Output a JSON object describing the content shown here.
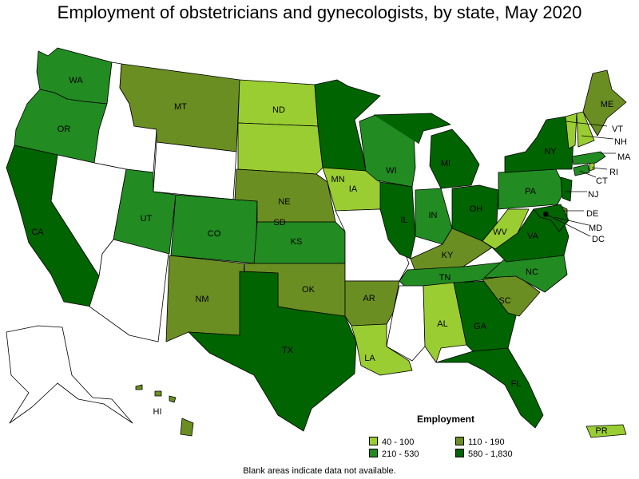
{
  "title": "Employment of obstetricians and gynecologists, by state, May 2020",
  "legend": {
    "title": "Employment",
    "bins": [
      {
        "label": "40 - 100",
        "color": "#9acd32"
      },
      {
        "label": "110 - 190",
        "color": "#6b8e23"
      },
      {
        "label": "210 - 530",
        "color": "#228b22"
      },
      {
        "label": "580 - 1,830",
        "color": "#006400"
      }
    ]
  },
  "note": "Blank areas indicate data not available.",
  "colors": {
    "no_data": "#ffffff",
    "border": "#000000"
  },
  "states": [
    {
      "code": "WA",
      "label": "WA",
      "bin": 2
    },
    {
      "code": "OR",
      "label": "OR",
      "bin": 2
    },
    {
      "code": "CA",
      "label": "CA",
      "bin": 3
    },
    {
      "code": "ID",
      "label": "",
      "bin": null
    },
    {
      "code": "NV",
      "label": "",
      "bin": null
    },
    {
      "code": "AZ",
      "label": "",
      "bin": null
    },
    {
      "code": "UT",
      "label": "UT",
      "bin": 2
    },
    {
      "code": "MT",
      "label": "MT",
      "bin": 1
    },
    {
      "code": "WY",
      "label": "",
      "bin": null
    },
    {
      "code": "CO",
      "label": "CO",
      "bin": 2
    },
    {
      "code": "NM",
      "label": "NM",
      "bin": 1
    },
    {
      "code": "ND",
      "label": "ND",
      "bin": 0
    },
    {
      "code": "SD",
      "label": "SD",
      "bin": 0
    },
    {
      "code": "NE",
      "label": "NE",
      "bin": 1
    },
    {
      "code": "KS",
      "label": "KS",
      "bin": 2
    },
    {
      "code": "OK",
      "label": "OK",
      "bin": 1
    },
    {
      "code": "TX",
      "label": "TX",
      "bin": 3
    },
    {
      "code": "MN",
      "label": "MN",
      "bin": 3
    },
    {
      "code": "IA",
      "label": "IA",
      "bin": 0
    },
    {
      "code": "MO",
      "label": "",
      "bin": null
    },
    {
      "code": "AR",
      "label": "AR",
      "bin": 1
    },
    {
      "code": "LA",
      "label": "LA",
      "bin": 0
    },
    {
      "code": "WI",
      "label": "WI",
      "bin": 2
    },
    {
      "code": "IL",
      "label": "IL",
      "bin": 3
    },
    {
      "code": "MI",
      "label": "MI",
      "bin": 3
    },
    {
      "code": "IN",
      "label": "IN",
      "bin": 2
    },
    {
      "code": "OH",
      "label": "OH",
      "bin": 3
    },
    {
      "code": "KY",
      "label": "KY",
      "bin": 1
    },
    {
      "code": "TN",
      "label": "TN",
      "bin": 2
    },
    {
      "code": "MS",
      "label": "",
      "bin": null
    },
    {
      "code": "AL",
      "label": "AL",
      "bin": 0
    },
    {
      "code": "GA",
      "label": "GA",
      "bin": 3
    },
    {
      "code": "FL",
      "label": "FL",
      "bin": 3
    },
    {
      "code": "SC",
      "label": "SC",
      "bin": 1
    },
    {
      "code": "NC",
      "label": "NC",
      "bin": 2
    },
    {
      "code": "VA",
      "label": "VA",
      "bin": 3
    },
    {
      "code": "WV",
      "label": "WV",
      "bin": 0
    },
    {
      "code": "PA",
      "label": "PA",
      "bin": 2
    },
    {
      "code": "NY",
      "label": "NY",
      "bin": 3
    },
    {
      "code": "NJ",
      "label": "NJ",
      "bin": 3
    },
    {
      "code": "DE",
      "label": "DE",
      "bin": 1
    },
    {
      "code": "MD",
      "label": "MD",
      "bin": 3
    },
    {
      "code": "DC",
      "label": "DC",
      "bin": 3
    },
    {
      "code": "CT",
      "label": "CT",
      "bin": 2
    },
    {
      "code": "RI",
      "label": "RI",
      "bin": 0
    },
    {
      "code": "MA",
      "label": "MA",
      "bin": 2
    },
    {
      "code": "VT",
      "label": "VT",
      "bin": 0
    },
    {
      "code": "NH",
      "label": "NH",
      "bin": 0
    },
    {
      "code": "ME",
      "label": "ME",
      "bin": 1
    },
    {
      "code": "AK",
      "label": "",
      "bin": null
    },
    {
      "code": "HI",
      "label": "HI",
      "bin": 1
    },
    {
      "code": "PR",
      "label": "PR",
      "bin": 0
    }
  ]
}
